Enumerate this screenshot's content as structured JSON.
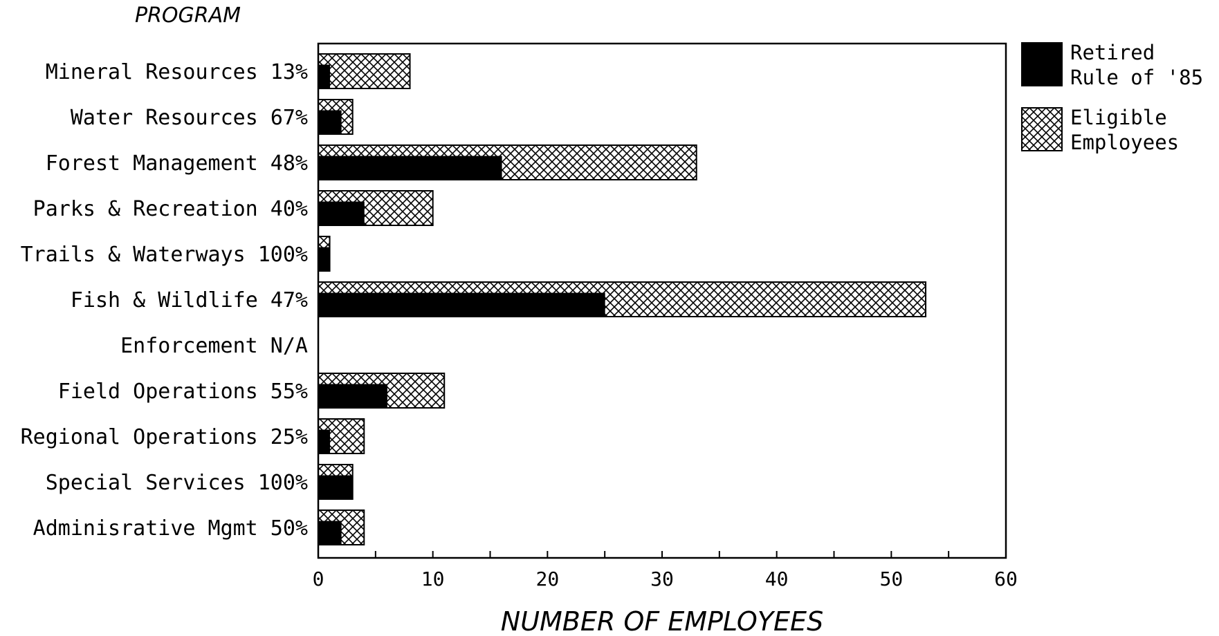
{
  "chart_data": {
    "type": "bar",
    "orientation": "horizontal",
    "stacking": "overlay",
    "title": "PROGRAM",
    "xlabel": "NUMBER OF EMPLOYEES",
    "ylabel": "",
    "xlim": [
      0,
      60
    ],
    "x_ticks": [
      0,
      10,
      20,
      30,
      40,
      50,
      60
    ],
    "grid": false,
    "legend_position": "right",
    "categories": [
      "Mineral Resources 13%",
      "Water Resources 67%",
      "Forest Management 48%",
      "Parks & Recreation 40%",
      "Trails & Waterways 100%",
      "Fish & Wildlife 47%",
      "Enforcement N/A",
      "Field Operations 55%",
      "Regional Operations 25%",
      "Special Services 100%",
      "Adminisrative Mgmt 50%"
    ],
    "series": [
      {
        "name": "Retired Rule of '85",
        "legend_lines": [
          "Retired",
          "Rule of '85"
        ],
        "pattern": "solid",
        "color": "#000000",
        "values": [
          1,
          2,
          16,
          4,
          1,
          25,
          0,
          6,
          1,
          3,
          2
        ]
      },
      {
        "name": "Eligible Employees",
        "legend_lines": [
          "Eligible",
          "Employees"
        ],
        "pattern": "crosshatch",
        "color": "#000000",
        "values": [
          8,
          3,
          33,
          10,
          1,
          53,
          0,
          11,
          4,
          3,
          4
        ]
      }
    ]
  }
}
